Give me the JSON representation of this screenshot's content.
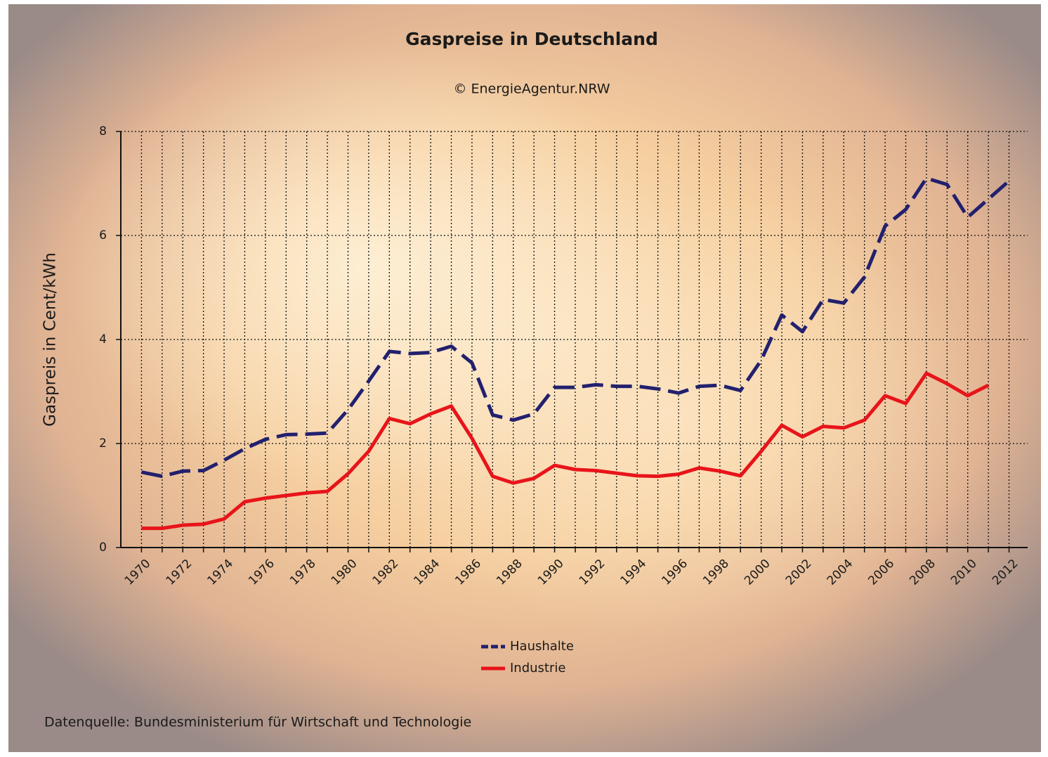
{
  "chart_data": {
    "type": "line",
    "title": "Gaspreise in Deutschland",
    "subtitle": "© EnergieAgentur.NRW",
    "y_label": "Gaspreis in Cent/kWh",
    "source": "Datenquelle: Bundesministerium für Wirtschaft und Technologie",
    "x": [
      1970,
      1971,
      1972,
      1973,
      1974,
      1975,
      1976,
      1977,
      1978,
      1979,
      1980,
      1981,
      1982,
      1983,
      1984,
      1985,
      1986,
      1987,
      1988,
      1989,
      1990,
      1991,
      1992,
      1993,
      1994,
      1995,
      1996,
      1997,
      1998,
      1999,
      2000,
      2001,
      2002,
      2003,
      2004,
      2005,
      2006,
      2007,
      2008,
      2009,
      2010,
      2011,
      2012
    ],
    "series": [
      {
        "name": "Haushalte",
        "color": "#22206e",
        "dashed": true,
        "values": [
          1.45,
          1.37,
          1.47,
          1.48,
          1.68,
          1.9,
          2.08,
          2.17,
          2.18,
          2.2,
          2.65,
          3.2,
          3.77,
          3.73,
          3.75,
          3.87,
          3.55,
          2.55,
          2.45,
          2.57,
          3.08,
          3.08,
          3.13,
          3.1,
          3.1,
          3.05,
          2.97,
          3.1,
          3.12,
          3.02,
          3.6,
          4.47,
          4.15,
          4.77,
          4.7,
          5.2,
          6.18,
          6.5,
          7.1,
          6.98,
          6.35,
          6.7,
          7.05
        ]
      },
      {
        "name": "Industrie",
        "color": "#e8141a",
        "dashed": false,
        "values": [
          0.37,
          0.37,
          0.43,
          0.45,
          0.55,
          0.88,
          0.95,
          1.0,
          1.05,
          1.08,
          1.42,
          1.85,
          2.48,
          2.38,
          2.57,
          2.72,
          2.1,
          1.37,
          1.24,
          1.33,
          1.58,
          1.5,
          1.48,
          1.43,
          1.38,
          1.37,
          1.41,
          1.53,
          1.47,
          1.38,
          1.85,
          2.35,
          2.13,
          2.33,
          2.3,
          2.45,
          2.92,
          2.77,
          3.35,
          3.15,
          2.92,
          3.12,
          null
        ]
      }
    ],
    "xlim": [
      1969,
      2012.9
    ],
    "xticks": [
      1970,
      1972,
      1974,
      1976,
      1978,
      1980,
      1982,
      1984,
      1986,
      1988,
      1990,
      1992,
      1994,
      1996,
      1998,
      2000,
      2002,
      2004,
      2006,
      2008,
      2010,
      2012
    ],
    "xminor_ticks": [
      1971,
      1973,
      1975,
      1977,
      1979,
      1981,
      1983,
      1985,
      1987,
      1989,
      1991,
      1993,
      1995,
      1997,
      1999,
      2001,
      2003,
      2005,
      2007,
      2009,
      2011
    ],
    "ylim": [
      0,
      8
    ],
    "yticks": [
      0,
      2,
      4,
      6,
      8
    ],
    "grid": true,
    "legend": "bottom"
  }
}
